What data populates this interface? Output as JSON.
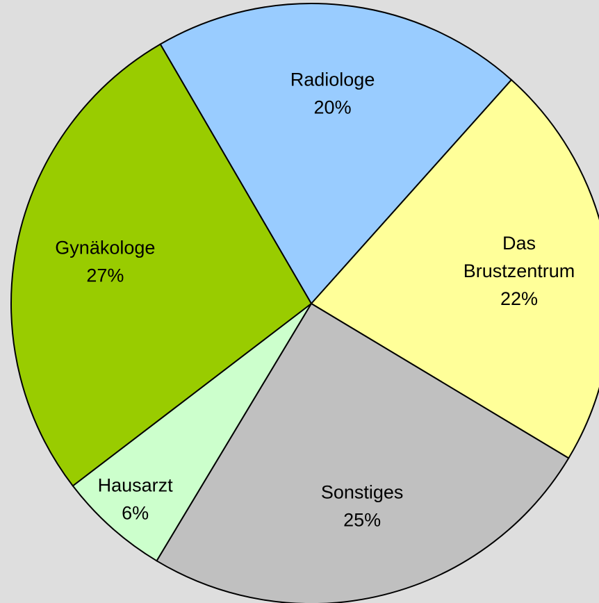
{
  "chart_data": {
    "type": "pie",
    "categories": [
      "Radiologe",
      "Das Brustzentrum",
      "Sonstiges",
      "Hausarzt",
      "Gynäkologe"
    ],
    "values": [
      20,
      22,
      25,
      6,
      27
    ],
    "value_labels": [
      "20%",
      "22%",
      "25%",
      "6%",
      "27%"
    ],
    "colors": [
      "#99ccff",
      "#ffff99",
      "#c0c0c0",
      "#ccffcc",
      "#99cc00"
    ]
  }
}
